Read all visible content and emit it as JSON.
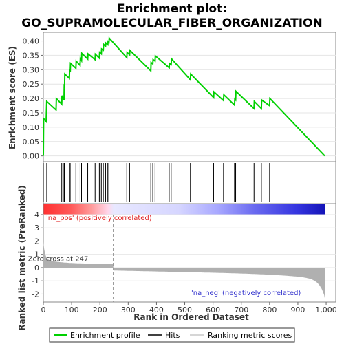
{
  "chart_data": {
    "type": "line",
    "title_line1": "Enrichment plot:",
    "title_line2": "GO_SUPRAMOLECULAR_FIBER_ORGANIZATION",
    "es_ylabel": "Enrichment score (ES)",
    "metric_ylabel": "Ranked list metric (PreRanked)",
    "xlabel": "Rank in Ordered Dataset",
    "xlim": [
      0,
      1000
    ],
    "es_ylim": [
      -0.02,
      0.43
    ],
    "metric_ylim": [
      -2.6,
      4.0
    ],
    "es_yticks": [
      "0.00",
      "0.05",
      "0.10",
      "0.15",
      "0.20",
      "0.25",
      "0.30",
      "0.35",
      "0.40"
    ],
    "metric_yticks": [
      "-2",
      "-1",
      "0",
      "1",
      "2",
      "3",
      "4"
    ],
    "xticks": [
      "0",
      "100",
      "200",
      "300",
      "400",
      "500",
      "600",
      "700",
      "800",
      "900",
      "1,000"
    ],
    "es_points": [
      [
        0,
        0.0
      ],
      [
        1,
        0.13
      ],
      [
        10,
        0.12
      ],
      [
        12,
        0.19
      ],
      [
        45,
        0.16
      ],
      [
        46,
        0.2
      ],
      [
        65,
        0.18
      ],
      [
        66,
        0.21
      ],
      [
        73,
        0.195
      ],
      [
        74,
        0.25
      ],
      [
        75,
        0.235
      ],
      [
        76,
        0.285
      ],
      [
        92,
        0.27
      ],
      [
        93,
        0.3
      ],
      [
        95,
        0.292
      ],
      [
        96,
        0.322
      ],
      [
        115,
        0.305
      ],
      [
        116,
        0.33
      ],
      [
        130,
        0.315
      ],
      [
        131,
        0.34
      ],
      [
        135,
        0.332
      ],
      [
        136,
        0.357
      ],
      [
        157,
        0.337
      ],
      [
        158,
        0.355
      ],
      [
        183,
        0.335
      ],
      [
        184,
        0.354
      ],
      [
        198,
        0.34
      ],
      [
        199,
        0.36
      ],
      [
        205,
        0.355
      ],
      [
        206,
        0.372
      ],
      [
        212,
        0.368
      ],
      [
        213,
        0.388
      ],
      [
        220,
        0.382
      ],
      [
        221,
        0.393
      ],
      [
        228,
        0.387
      ],
      [
        229,
        0.398
      ],
      [
        232,
        0.395
      ],
      [
        233,
        0.41
      ],
      [
        295,
        0.342
      ],
      [
        296,
        0.36
      ],
      [
        305,
        0.352
      ],
      [
        306,
        0.367
      ],
      [
        380,
        0.296
      ],
      [
        381,
        0.325
      ],
      [
        387,
        0.32
      ],
      [
        388,
        0.335
      ],
      [
        395,
        0.33
      ],
      [
        396,
        0.348
      ],
      [
        445,
        0.307
      ],
      [
        446,
        0.322
      ],
      [
        452,
        0.318
      ],
      [
        453,
        0.338
      ],
      [
        520,
        0.265
      ],
      [
        521,
        0.285
      ],
      [
        602,
        0.203
      ],
      [
        603,
        0.223
      ],
      [
        637,
        0.193
      ],
      [
        638,
        0.213
      ],
      [
        676,
        0.177
      ],
      [
        677,
        0.198
      ],
      [
        680,
        0.195
      ],
      [
        681,
        0.225
      ],
      [
        745,
        0.165
      ],
      [
        746,
        0.19
      ],
      [
        771,
        0.165
      ],
      [
        772,
        0.195
      ],
      [
        800,
        0.175
      ],
      [
        801,
        0.2
      ],
      [
        995,
        0.0
      ]
    ],
    "hits": [
      0,
      12,
      45,
      65,
      73,
      75,
      92,
      95,
      115,
      130,
      135,
      157,
      183,
      198,
      205,
      212,
      220,
      228,
      232,
      295,
      305,
      380,
      387,
      395,
      445,
      452,
      520,
      602,
      637,
      676,
      680,
      745,
      771,
      800
    ],
    "zero_cross": 247,
    "zero_cross_label": "Zero cross at 247",
    "pos_label": "'na_pos' (positively correlated)",
    "neg_label": "'na_neg' (negatively correlated)",
    "legend": [
      "Enrichment profile",
      "Hits",
      "Ranking metric scores"
    ],
    "colors": {
      "es_line": "#00d000",
      "pos_text": "#e02020",
      "neg_text": "#3030cc",
      "metric_fill": "#b0b0b0",
      "hit_line": "#000000"
    }
  }
}
